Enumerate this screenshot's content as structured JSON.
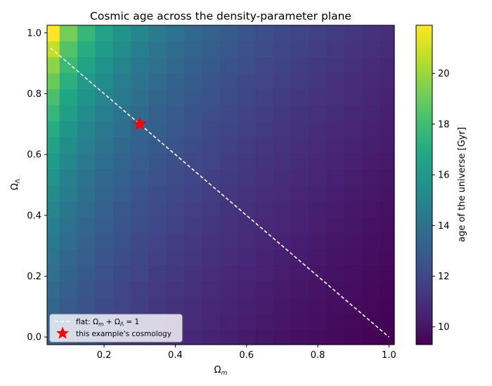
{
  "chart_data": {
    "type": "heatmap",
    "title": "Cosmic age across the density-parameter plane",
    "xlabel": "Ω_m",
    "ylabel": "Ω_Λ",
    "xlim": [
      0.04,
      1.015
    ],
    "ylim": [
      -0.025,
      1.025
    ],
    "x_ticks": [
      0.2,
      0.4,
      0.6,
      0.8,
      1.0
    ],
    "x_tick_labels": [
      "0.2",
      "0.4",
      "0.6",
      "0.8",
      "1.0"
    ],
    "y_ticks": [
      0.0,
      0.2,
      0.4,
      0.6,
      0.8,
      1.0
    ],
    "y_tick_labels": [
      "0.0",
      "0.2",
      "0.4",
      "0.6",
      "0.8",
      "1.0"
    ],
    "grid": false,
    "colormap": "viridis",
    "heatmap": {
      "omega_m_range": [
        0.05,
        1.0
      ],
      "omega_lambda_range": [
        0.0,
        1.0
      ],
      "grid_size": [
        20,
        20
      ],
      "quantity": "age of the universe (Gyr), H0 = 70 km/s/Mpc"
    },
    "colorbar": {
      "label": "age of the universe [Gyr]",
      "range": [
        9.3,
        21.9
      ],
      "ticks": [
        10,
        12,
        14,
        16,
        18,
        20
      ],
      "tick_labels": [
        "10",
        "12",
        "14",
        "16",
        "18",
        "20"
      ]
    },
    "series": [
      {
        "name": "flat: Ω_m + Ω_Λ = 1",
        "style": "dashed-line",
        "color": "#ffffff",
        "x": [
          0.05,
          1.0
        ],
        "y": [
          0.95,
          0.0
        ]
      },
      {
        "name": "this example's cosmology",
        "style": "star-marker",
        "color": "#ff0000",
        "x": [
          0.3
        ],
        "y": [
          0.7
        ]
      }
    ],
    "legend": {
      "placement": "lower-left",
      "entries": [
        "flat: Ω_m + Ω_Λ = 1",
        "this example's cosmology"
      ]
    }
  }
}
